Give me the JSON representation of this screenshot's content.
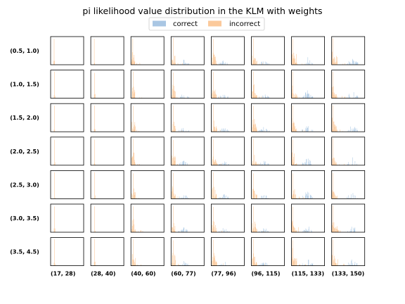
{
  "chart_data": {
    "type": "histogram-grid",
    "title": "pi likelihood value distribution in the KLM with weights",
    "legend": {
      "placement": "top-center",
      "entries": [
        {
          "name": "correct",
          "color": "#a9c6e3"
        },
        {
          "name": "incorrect",
          "color": "#fbc99b"
        }
      ]
    },
    "row_labels": [
      "(0.5, 1.0)",
      "(1.0, 1.5)",
      "(1.5, 2.0)",
      "(2.0, 2.5)",
      "(2.5, 3.0)",
      "(3.0, 3.5)",
      "(3.5, 4.5)"
    ],
    "col_labels": [
      "(17, 28)",
      "(28, 40)",
      "(40, 60)",
      "(60, 77)",
      "(77, 96)",
      "(96, 115)",
      "(115, 133)",
      "(133, 150)"
    ],
    "series": [
      {
        "name": "correct",
        "color": "#a9c6e3"
      },
      {
        "name": "incorrect",
        "color": "#fbc99b"
      }
    ],
    "axes": {
      "ticks_visible": false,
      "grid": false
    }
  }
}
